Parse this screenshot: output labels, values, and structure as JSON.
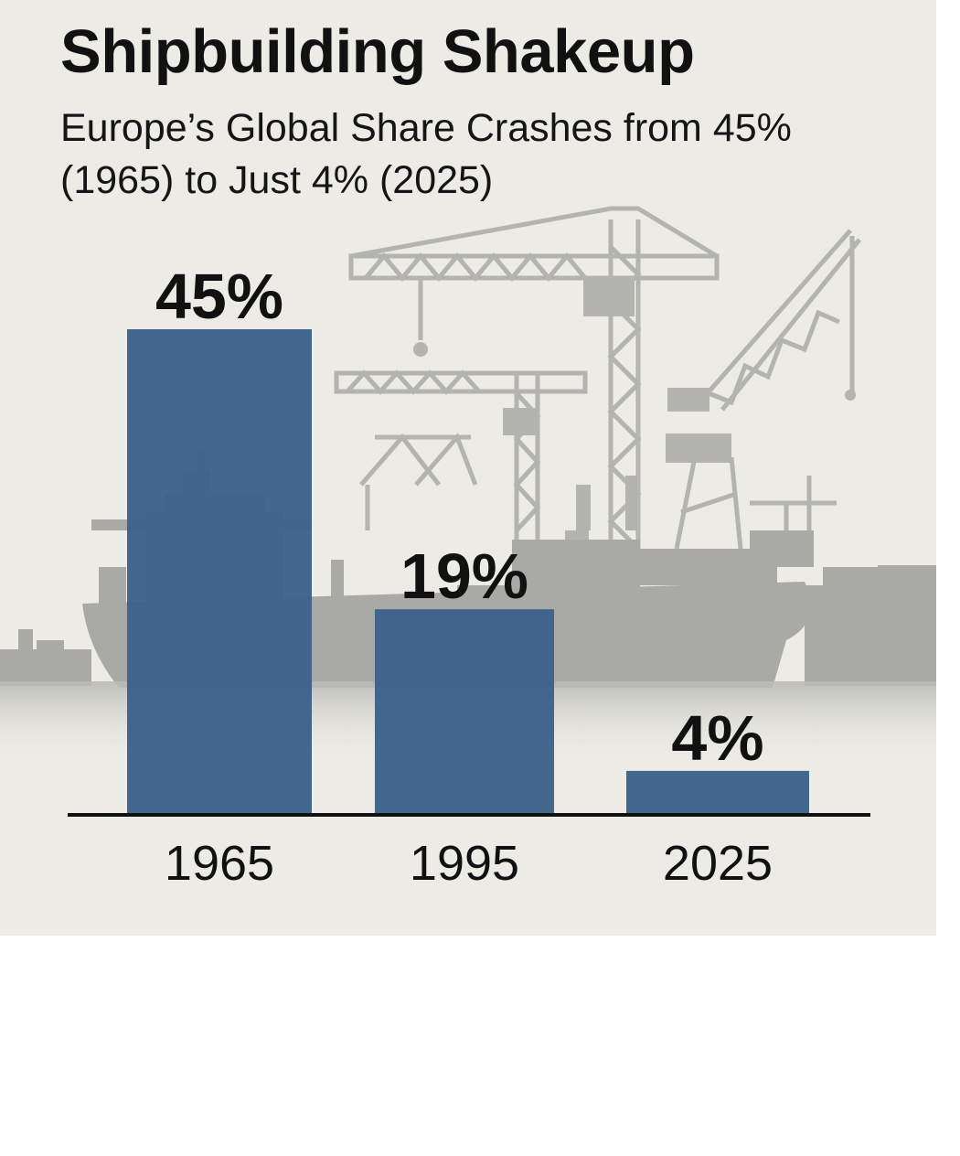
{
  "title": "Shipbuilding Shakeup",
  "subtitle": "Europe’s Global Share Crashes from 45% (1965) to Just 4% (2025)",
  "colors": {
    "bar": "#3b6189",
    "background": "#ecebe6",
    "silhouette": "#a9a9a6",
    "text": "#111111"
  },
  "chart_data": {
    "type": "bar",
    "title": "Shipbuilding Shakeup",
    "subtitle": "Europe’s Global Share Crashes from 45% (1965) to Just 4% (2025)",
    "categories": [
      "1965",
      "1995",
      "2025"
    ],
    "values": [
      45,
      19,
      4
    ],
    "data_labels": [
      "45%",
      "19%",
      "4%"
    ],
    "unit": "%",
    "ylim": [
      0,
      45
    ],
    "grid": false,
    "legend": "none"
  }
}
